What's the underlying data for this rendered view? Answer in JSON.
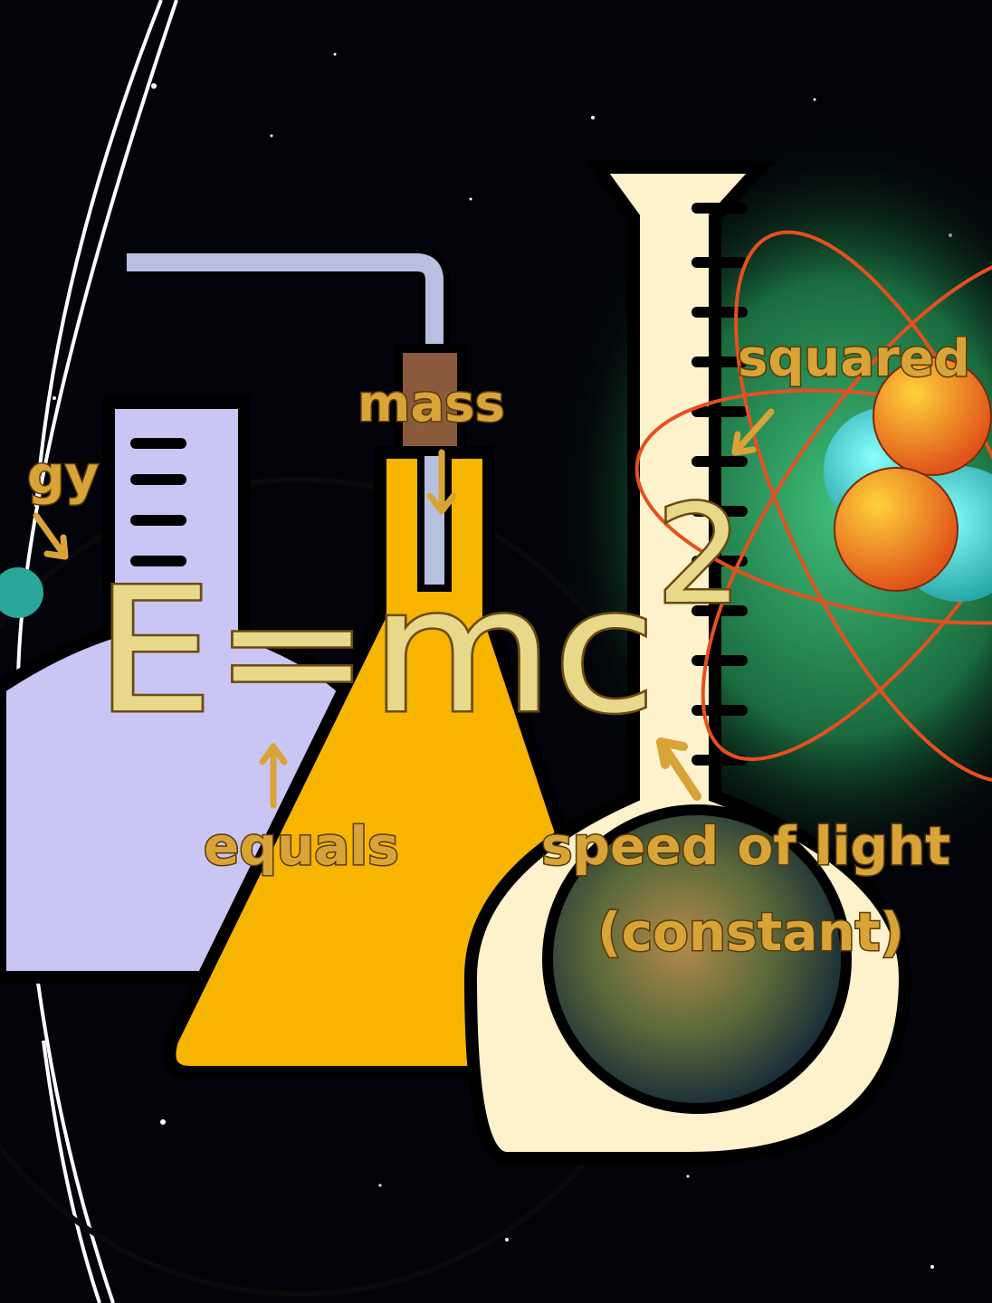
{
  "labels": {
    "energy": "gy",
    "mass": "mass",
    "squared": "squared",
    "equation": "E=mc",
    "exponent": "2",
    "equals": "equals",
    "speed_of_light": "speed of light",
    "constant": "(constant)"
  }
}
